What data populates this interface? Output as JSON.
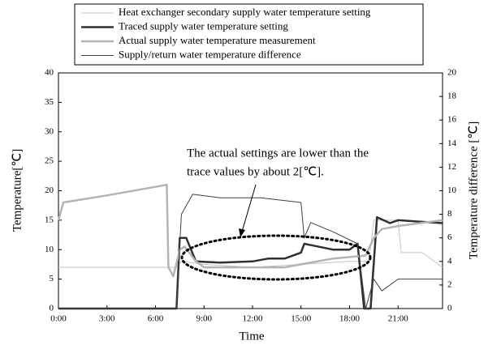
{
  "chart_data": {
    "type": "line",
    "xlabel": "Time",
    "ylabel": "Temperature[℃]",
    "y2label": "Temperature difference [℃]",
    "annotation": [
      "The actual settings are lower than the",
      "trace values by about 2[℃]."
    ],
    "xlim": [
      0,
      23.75
    ],
    "xticks": [
      {
        "value": 0,
        "label": "0:00"
      },
      {
        "value": 3,
        "label": "3:00"
      },
      {
        "value": 6,
        "label": "6:00"
      },
      {
        "value": 9,
        "label": "9:00"
      },
      {
        "value": 12,
        "label": "12:00"
      },
      {
        "value": 15,
        "label": "15:00"
      },
      {
        "value": 18,
        "label": "18:00"
      },
      {
        "value": 21,
        "label": "21:00"
      }
    ],
    "ylim": [
      0,
      40
    ],
    "yticks": [
      0,
      5,
      10,
      15,
      20,
      25,
      30,
      35,
      40
    ],
    "y2lim": [
      0,
      20
    ],
    "y2ticks": [
      0,
      2,
      4,
      6,
      8,
      10,
      12,
      14,
      16,
      18,
      20
    ],
    "series": [
      {
        "name": "Heat exchanger secondary supply water temperature setting",
        "color": "#c4c4c4",
        "x": [
          0,
          7.3,
          7.6,
          9,
          12,
          15,
          18,
          19.2,
          19.5,
          21,
          21.2,
          22.5,
          23.75
        ],
        "values": [
          7,
          7,
          8,
          7.5,
          7,
          7.5,
          8,
          8,
          15,
          15,
          9.5,
          9.5,
          7
        ]
      },
      {
        "name": "Traced supply water temperature setting",
        "color": "#303030",
        "x": [
          0,
          7.3,
          7.5,
          7.9,
          8.5,
          10,
          12,
          13,
          14,
          15,
          15.2,
          17,
          18,
          18.5,
          18.9,
          19.3,
          19.7,
          20.5,
          21,
          23.75
        ],
        "values": [
          0,
          0,
          12,
          12,
          8,
          7.8,
          8,
          8.5,
          8.5,
          9.5,
          11,
          10,
          10,
          11,
          0,
          0,
          15.5,
          14.5,
          15,
          14.5
        ]
      },
      {
        "name": "Actual supply water temperature measurement",
        "color": "#b4b4b4",
        "x": [
          0,
          0.3,
          3,
          6.7,
          6.8,
          7.1,
          7.5,
          7.8,
          8.5,
          9,
          12,
          14,
          15,
          17,
          19,
          19.5,
          20,
          21,
          23.75
        ],
        "values": [
          15,
          18,
          19.2,
          21,
          7,
          5.5,
          10,
          10.5,
          8,
          7,
          7,
          7,
          7.5,
          8.5,
          9,
          12,
          13.5,
          14,
          15
        ]
      },
      {
        "name": "Supply/return water temperature difference",
        "color": "#404040",
        "axis": "y2",
        "x": [
          0,
          7.3,
          7.6,
          8.3,
          10,
          12.5,
          15,
          15.2,
          15.6,
          17,
          18.5,
          19,
          19.5,
          20,
          21,
          23.75
        ],
        "values": [
          0,
          0,
          8,
          9.7,
          9.4,
          9.4,
          9,
          6,
          7.3,
          6.5,
          5.5,
          0,
          2.5,
          1.5,
          2.5,
          2.5
        ]
      }
    ]
  }
}
